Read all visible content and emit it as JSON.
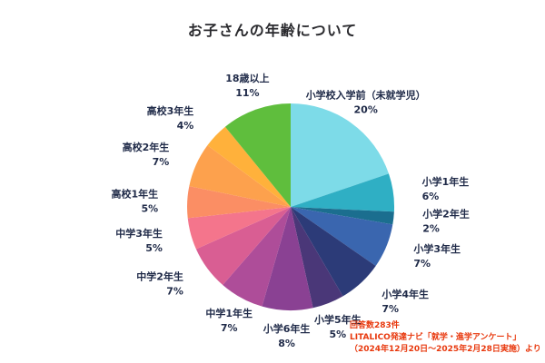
{
  "title": "お子さんの年齢について",
  "footer": {
    "lines": [
      "回答数283件",
      "LITALICO発達ナビ「就学・進学アンケート」",
      "（2024年12月20日～2025年2月28日実施）より"
    ],
    "color": "#e8380d"
  },
  "chart_data": {
    "type": "pie",
    "title": "お子さんの年齢について",
    "response_count_note": "回答数283件",
    "source_note": "LITALICO発達ナビ「就学・進学アンケート」（2024年12月20日～2025年2月28日実施）より",
    "unit": "%",
    "direction": "clockwise",
    "start_angle_deg": 0,
    "legend_position": "labels-around-pie",
    "label_color": "#1f2a48",
    "categories": [
      "小学校入学前（未就学児）",
      "小学1年生",
      "小学2年生",
      "小学3年生",
      "小学4年生",
      "小学5年生",
      "小学6年生",
      "中学1年生",
      "中学2年生",
      "中学3年生",
      "高校1年生",
      "高校2年生",
      "高校3年生",
      "18歳以上"
    ],
    "values": [
      20,
      6,
      2,
      7,
      7,
      5,
      8,
      7,
      7,
      5,
      5,
      7,
      4,
      11
    ],
    "colors": [
      "#7ddbe8",
      "#2fafc4",
      "#1b6e8f",
      "#3a66af",
      "#2c3b78",
      "#4a3778",
      "#8a4193",
      "#ae4d99",
      "#d95e93",
      "#f4758c",
      "#fb8e64",
      "#fda14d",
      "#ffb13b",
      "#5fbe3d"
    ]
  }
}
